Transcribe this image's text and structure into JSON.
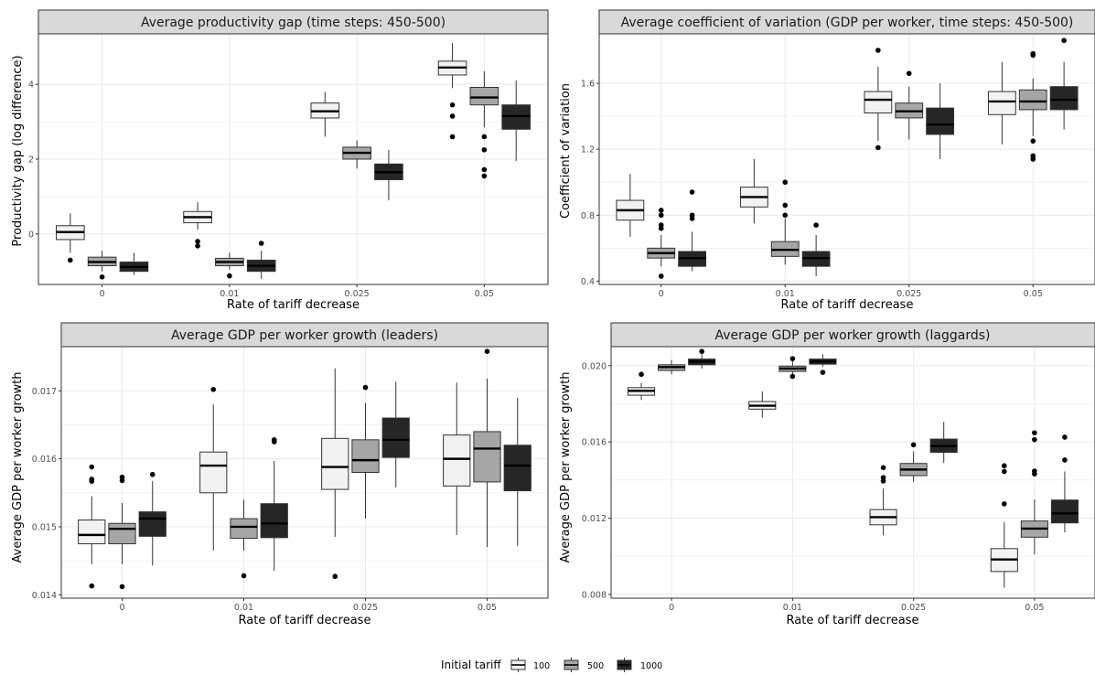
{
  "chart_data": [
    {
      "type": "box",
      "title": "Average productivity gap (time steps: 450-500)",
      "xlabel": "Rate of tariff decrease",
      "ylabel": "Productivity gap (log difference)",
      "categories": [
        "0",
        "0.01",
        "0.025",
        "0.05"
      ],
      "ylim": [
        -1.35,
        5.35
      ],
      "yticks": [
        0,
        2,
        4
      ],
      "ytick_labels": [
        "0",
        "2",
        "4"
      ],
      "grid": true,
      "series": [
        {
          "name": "100",
          "boxes": [
            {
              "whislo": -0.5,
              "q1": -0.15,
              "med": 0.05,
              "q3": 0.22,
              "whishi": 0.55,
              "fliers": [
                -0.7
              ]
            },
            {
              "whislo": 0.12,
              "q1": 0.3,
              "med": 0.45,
              "q3": 0.6,
              "whishi": 0.85,
              "fliers": [
                -0.2,
                -0.32
              ]
            },
            {
              "whislo": 2.6,
              "q1": 3.1,
              "med": 3.28,
              "q3": 3.5,
              "whishi": 3.8,
              "fliers": []
            },
            {
              "whislo": 3.9,
              "q1": 4.25,
              "med": 4.45,
              "q3": 4.62,
              "whishi": 5.1,
              "fliers": [
                3.45,
                3.15,
                2.6
              ]
            }
          ]
        },
        {
          "name": "500",
          "boxes": [
            {
              "whislo": -1.0,
              "q1": -0.85,
              "med": -0.75,
              "q3": -0.62,
              "whishi": -0.45,
              "fliers": [
                -1.15
              ]
            },
            {
              "whislo": -0.95,
              "q1": -0.85,
              "med": -0.75,
              "q3": -0.65,
              "whishi": -0.5,
              "fliers": [
                -1.12
              ]
            },
            {
              "whislo": 1.75,
              "q1": 2.0,
              "med": 2.17,
              "q3": 2.32,
              "whishi": 2.5,
              "fliers": []
            },
            {
              "whislo": 2.85,
              "q1": 3.45,
              "med": 3.65,
              "q3": 3.92,
              "whishi": 4.35,
              "fliers": [
                2.6,
                2.25,
                1.72,
                1.55
              ]
            }
          ]
        },
        {
          "name": "1000",
          "boxes": [
            {
              "whislo": -1.1,
              "q1": -1.0,
              "med": -0.88,
              "q3": -0.75,
              "whishi": -0.5,
              "fliers": []
            },
            {
              "whislo": -1.2,
              "q1": -1.0,
              "med": -0.85,
              "q3": -0.7,
              "whishi": -0.45,
              "fliers": [
                -0.25
              ]
            },
            {
              "whislo": 0.9,
              "q1": 1.45,
              "med": 1.65,
              "q3": 1.87,
              "whishi": 2.25,
              "fliers": []
            },
            {
              "whislo": 1.95,
              "q1": 2.8,
              "med": 3.15,
              "q3": 3.45,
              "whishi": 4.1,
              "fliers": []
            }
          ]
        }
      ]
    },
    {
      "type": "box",
      "title": "Average coefficient of variation (GDP per worker, time steps: 450-500)",
      "xlabel": "Rate of tariff decrease",
      "ylabel": "Coefficient of variation",
      "categories": [
        "0",
        "0.01",
        "0.025",
        "0.05"
      ],
      "ylim": [
        0.38,
        1.9
      ],
      "yticks": [
        0.4,
        0.8,
        1.2,
        1.6
      ],
      "ytick_labels": [
        "0.4",
        "0.8",
        "1.2",
        "1.6"
      ],
      "grid": true,
      "series": [
        {
          "name": "100",
          "boxes": [
            {
              "whislo": 0.67,
              "q1": 0.77,
              "med": 0.83,
              "q3": 0.89,
              "whishi": 1.05,
              "fliers": []
            },
            {
              "whislo": 0.75,
              "q1": 0.85,
              "med": 0.91,
              "q3": 0.97,
              "whishi": 1.14,
              "fliers": []
            },
            {
              "whislo": 1.25,
              "q1": 1.42,
              "med": 1.5,
              "q3": 1.55,
              "whishi": 1.7,
              "fliers": [
                1.8,
                1.21
              ]
            },
            {
              "whislo": 1.23,
              "q1": 1.41,
              "med": 1.49,
              "q3": 1.55,
              "whishi": 1.73,
              "fliers": []
            }
          ]
        },
        {
          "name": "500",
          "boxes": [
            {
              "whislo": 0.49,
              "q1": 0.54,
              "med": 0.57,
              "q3": 0.6,
              "whishi": 0.68,
              "fliers": [
                0.83,
                0.8,
                0.74,
                0.72,
                0.43
              ]
            },
            {
              "whislo": 0.5,
              "q1": 0.55,
              "med": 0.59,
              "q3": 0.64,
              "whishi": 0.78,
              "fliers": [
                1.0,
                0.86,
                0.8
              ]
            },
            {
              "whislo": 1.26,
              "q1": 1.39,
              "med": 1.43,
              "q3": 1.48,
              "whishi": 1.58,
              "fliers": [
                1.66
              ]
            },
            {
              "whislo": 1.28,
              "q1": 1.44,
              "med": 1.49,
              "q3": 1.56,
              "whishi": 1.63,
              "fliers": [
                1.78,
                1.77,
                1.25,
                1.16,
                1.14
              ]
            }
          ]
        },
        {
          "name": "1000",
          "boxes": [
            {
              "whislo": 0.46,
              "q1": 0.49,
              "med": 0.54,
              "q3": 0.58,
              "whishi": 0.7,
              "fliers": [
                0.94,
                0.8,
                0.78
              ]
            },
            {
              "whislo": 0.43,
              "q1": 0.49,
              "med": 0.54,
              "q3": 0.58,
              "whishi": 0.68,
              "fliers": [
                0.74
              ]
            },
            {
              "whislo": 1.14,
              "q1": 1.29,
              "med": 1.35,
              "q3": 1.45,
              "whishi": 1.6,
              "fliers": []
            },
            {
              "whislo": 1.32,
              "q1": 1.44,
              "med": 1.5,
              "q3": 1.58,
              "whishi": 1.73,
              "fliers": [
                1.86
              ]
            }
          ]
        }
      ]
    },
    {
      "type": "box",
      "title": "Average  GDP per worker growth (leaders)",
      "xlabel": "Rate of tariff decrease",
      "ylabel": "Average GDP per worker growth",
      "categories": [
        "0",
        "0.01",
        "0.025",
        "0.05"
      ],
      "ylim": [
        0.01395,
        0.01765
      ],
      "yticks": [
        0.014,
        0.015,
        0.016,
        0.017
      ],
      "ytick_labels": [
        "0.014",
        "0.015",
        "0.016",
        "0.017"
      ],
      "grid": true,
      "series": [
        {
          "name": "100",
          "boxes": [
            {
              "whislo": 0.01445,
              "q1": 0.01475,
              "med": 0.01488,
              "q3": 0.0151,
              "whishi": 0.01545,
              "fliers": [
                0.01588,
                0.0157,
                0.01567,
                0.01413
              ]
            },
            {
              "whislo": 0.01465,
              "q1": 0.0155,
              "med": 0.0159,
              "q3": 0.0161,
              "whishi": 0.0168,
              "fliers": [
                0.01702
              ]
            },
            {
              "whislo": 0.01485,
              "q1": 0.01555,
              "med": 0.01588,
              "q3": 0.0163,
              "whishi": 0.01733,
              "fliers": [
                0.01427
              ]
            },
            {
              "whislo": 0.01488,
              "q1": 0.0156,
              "med": 0.016,
              "q3": 0.01635,
              "whishi": 0.01712,
              "fliers": []
            }
          ]
        },
        {
          "name": "500",
          "boxes": [
            {
              "whislo": 0.01445,
              "q1": 0.01475,
              "med": 0.01497,
              "q3": 0.01505,
              "whishi": 0.01535,
              "fliers": [
                0.01573,
                0.01568,
                0.01412
              ]
            },
            {
              "whislo": 0.01465,
              "q1": 0.01483,
              "med": 0.015,
              "q3": 0.01512,
              "whishi": 0.0154,
              "fliers": [
                0.01428
              ]
            },
            {
              "whislo": 0.01512,
              "q1": 0.0158,
              "med": 0.01598,
              "q3": 0.01628,
              "whishi": 0.01682,
              "fliers": [
                0.01705
              ]
            },
            {
              "whislo": 0.0147,
              "q1": 0.01566,
              "med": 0.01615,
              "q3": 0.0164,
              "whishi": 0.01718,
              "fliers": [
                0.01758
              ]
            }
          ]
        },
        {
          "name": "1000",
          "boxes": [
            {
              "whislo": 0.01443,
              "q1": 0.01486,
              "med": 0.01512,
              "q3": 0.01522,
              "whishi": 0.01567,
              "fliers": [
                0.01577
              ]
            },
            {
              "whislo": 0.01435,
              "q1": 0.01484,
              "med": 0.01505,
              "q3": 0.01534,
              "whishi": 0.01597,
              "fliers": [
                0.01628,
                0.01625
              ]
            },
            {
              "whislo": 0.01558,
              "q1": 0.01602,
              "med": 0.01628,
              "q3": 0.0166,
              "whishi": 0.01713,
              "fliers": []
            },
            {
              "whislo": 0.01472,
              "q1": 0.01553,
              "med": 0.0159,
              "q3": 0.0162,
              "whishi": 0.0169,
              "fliers": []
            }
          ]
        }
      ]
    },
    {
      "type": "box",
      "title": "Average  GDP per worker growth (laggards)",
      "xlabel": "Rate of tariff decrease",
      "ylabel": "Average GDP per worker growth",
      "categories": [
        "0",
        "0.01",
        "0.025",
        "0.05"
      ],
      "ylim": [
        0.0078,
        0.021
      ],
      "yticks": [
        0.008,
        0.012,
        0.016,
        0.02
      ],
      "ytick_labels": [
        "0.008",
        "0.012",
        "0.016",
        "0.020"
      ],
      "grid": true,
      "series": [
        {
          "name": "100",
          "boxes": [
            {
              "whislo": 0.0182,
              "q1": 0.01845,
              "med": 0.01868,
              "q3": 0.01885,
              "whishi": 0.0191,
              "fliers": [
                0.01955
              ]
            },
            {
              "whislo": 0.01728,
              "q1": 0.01772,
              "med": 0.0179,
              "q3": 0.01812,
              "whishi": 0.01865,
              "fliers": []
            },
            {
              "whislo": 0.0111,
              "q1": 0.01165,
              "med": 0.01205,
              "q3": 0.01245,
              "whishi": 0.01355,
              "fliers": [
                0.01465,
                0.01413,
                0.01395
              ]
            },
            {
              "whislo": 0.00835,
              "q1": 0.0092,
              "med": 0.00983,
              "q3": 0.0104,
              "whishi": 0.0118,
              "fliers": [
                0.01475,
                0.01445,
                0.01275
              ]
            }
          ]
        },
        {
          "name": "500",
          "boxes": [
            {
              "whislo": 0.01955,
              "q1": 0.01975,
              "med": 0.01993,
              "q3": 0.02005,
              "whishi": 0.0203,
              "fliers": []
            },
            {
              "whislo": 0.01955,
              "q1": 0.0197,
              "med": 0.01985,
              "q3": 0.01998,
              "whishi": 0.02025,
              "fliers": [
                0.02037,
                0.01944
              ]
            },
            {
              "whislo": 0.0139,
              "q1": 0.01423,
              "med": 0.01455,
              "q3": 0.01487,
              "whishi": 0.0155,
              "fliers": [
                0.01585
              ]
            },
            {
              "whislo": 0.0101,
              "q1": 0.011,
              "med": 0.01145,
              "q3": 0.01185,
              "whishi": 0.01298,
              "fliers": [
                0.01648,
                0.01612,
                0.01447,
                0.01432
              ]
            }
          ]
        },
        {
          "name": "1000",
          "boxes": [
            {
              "whislo": 0.01985,
              "q1": 0.02005,
              "med": 0.02022,
              "q3": 0.02035,
              "whishi": 0.0206,
              "fliers": [
                0.02075
              ]
            },
            {
              "whislo": 0.01995,
              "q1": 0.02008,
              "med": 0.02022,
              "q3": 0.02035,
              "whishi": 0.0206,
              "fliers": [
                0.01965
              ]
            },
            {
              "whislo": 0.0149,
              "q1": 0.01545,
              "med": 0.01578,
              "q3": 0.01615,
              "whishi": 0.01705,
              "fliers": []
            },
            {
              "whislo": 0.01125,
              "q1": 0.01175,
              "med": 0.01225,
              "q3": 0.01295,
              "whishi": 0.01445,
              "fliers": [
                0.01625,
                0.01505
              ]
            }
          ]
        }
      ]
    }
  ],
  "legend": {
    "title": "Initial tariff",
    "placement": "bottom",
    "items": [
      {
        "label": "100",
        "color": "#f2f2f2"
      },
      {
        "label": "500",
        "color": "#a6a6a6"
      },
      {
        "label": "1000",
        "color": "#262626"
      }
    ]
  },
  "colors": {
    "strip": "#d9d9d9",
    "grid": "#ebebeb",
    "border": "#333333",
    "fill_100": "#f2f2f2",
    "fill_500": "#a6a6a6",
    "fill_1000": "#262626"
  }
}
